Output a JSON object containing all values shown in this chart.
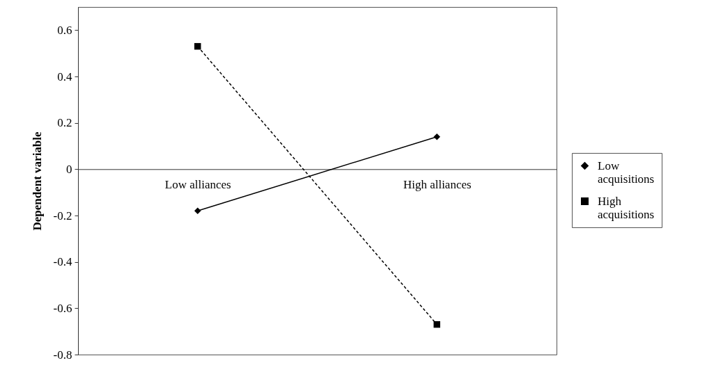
{
  "chart_data": {
    "type": "line",
    "ylabel": "Dependent variable",
    "categories": [
      "Low alliances",
      "High alliances"
    ],
    "series": [
      {
        "name": "Low acquisitions",
        "color": "#000000",
        "values": [
          -0.18,
          0.14
        ],
        "marker": "diamond",
        "line_style": "solid"
      },
      {
        "name": "High acquisitions",
        "color": "#000000",
        "values": [
          0.53,
          -0.67
        ],
        "marker": "square",
        "line_style": "dashed"
      }
    ],
    "ylim": [
      -0.8,
      0.7
    ],
    "yticks": [
      -0.8,
      -0.6,
      -0.4,
      -0.2,
      0,
      0.2,
      0.4,
      0.6
    ],
    "grid": false,
    "legend": "right"
  }
}
